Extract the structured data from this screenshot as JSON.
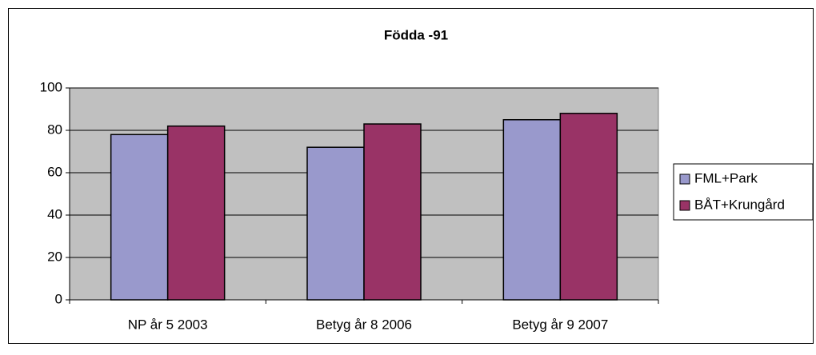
{
  "chart_data": {
    "type": "bar",
    "title": "Födda -91",
    "categories": [
      "NP år 5 2003",
      "Betyg år 8 2006",
      "Betyg år 9 2007"
    ],
    "series": [
      {
        "name": "FML+Park",
        "color": "#9999cc",
        "values": [
          78,
          72,
          85
        ]
      },
      {
        "name": "BÅT+Krungård",
        "color": "#993366",
        "values": [
          82,
          83,
          88
        ]
      }
    ],
    "ylim": [
      0,
      100
    ],
    "yticks": [
      0,
      20,
      40,
      60,
      80,
      100
    ],
    "grid": true,
    "legend": "right"
  }
}
